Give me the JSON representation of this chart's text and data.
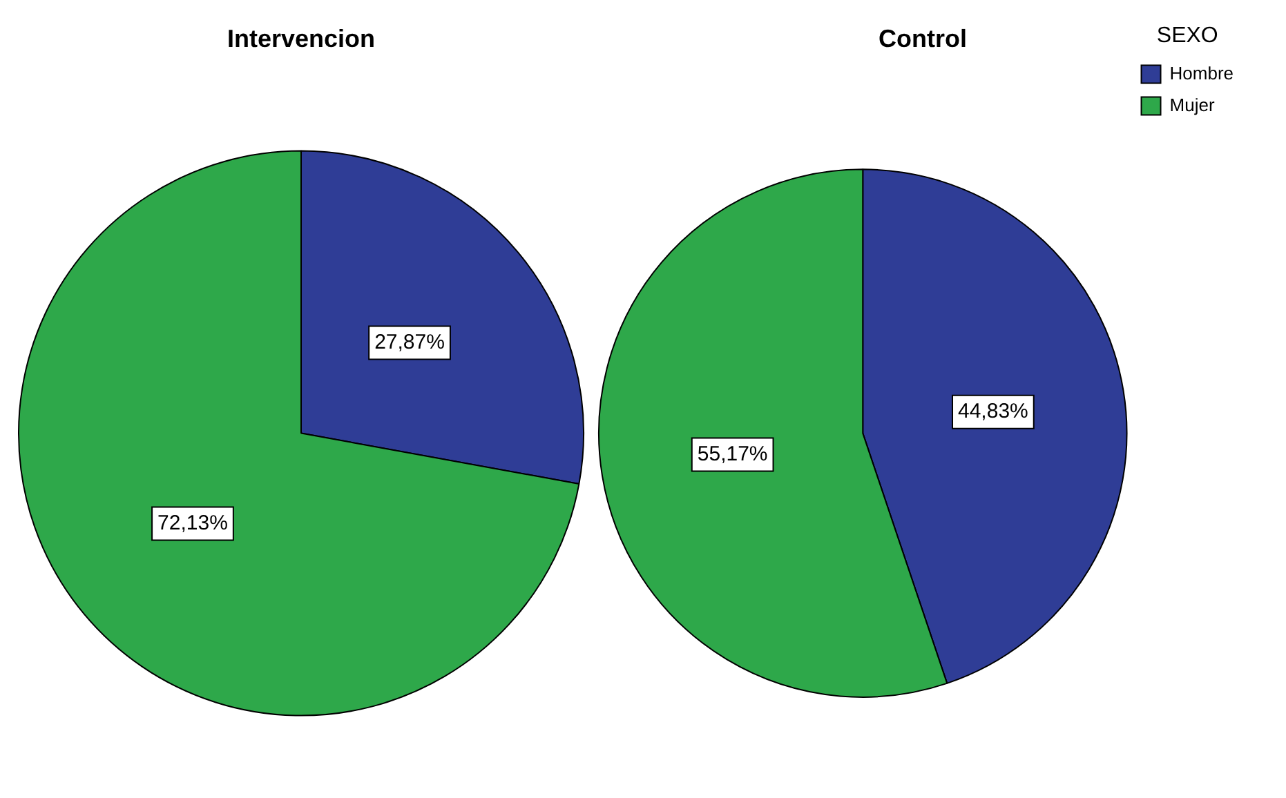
{
  "chart_data": [
    {
      "type": "pie",
      "title": "Intervencion",
      "categories": [
        null,
        null
      ],
      "values": [
        27.87,
        72.13
      ],
      "colors": [
        "#2f3d96",
        "#2ea84a"
      ],
      "value_labels": [
        "27,87%",
        "72,13%"
      ],
      "legend": false
    },
    {
      "type": "pie",
      "title": "Control",
      "categories": [
        "Hombre",
        "Mujer"
      ],
      "values": [
        44.83,
        55.17
      ],
      "colors": [
        "#2f3d96",
        "#2ea84a"
      ],
      "value_labels": [
        "44,83%",
        "55,17%"
      ],
      "legend": "top right",
      "legend_title": "SEXO"
    }
  ]
}
